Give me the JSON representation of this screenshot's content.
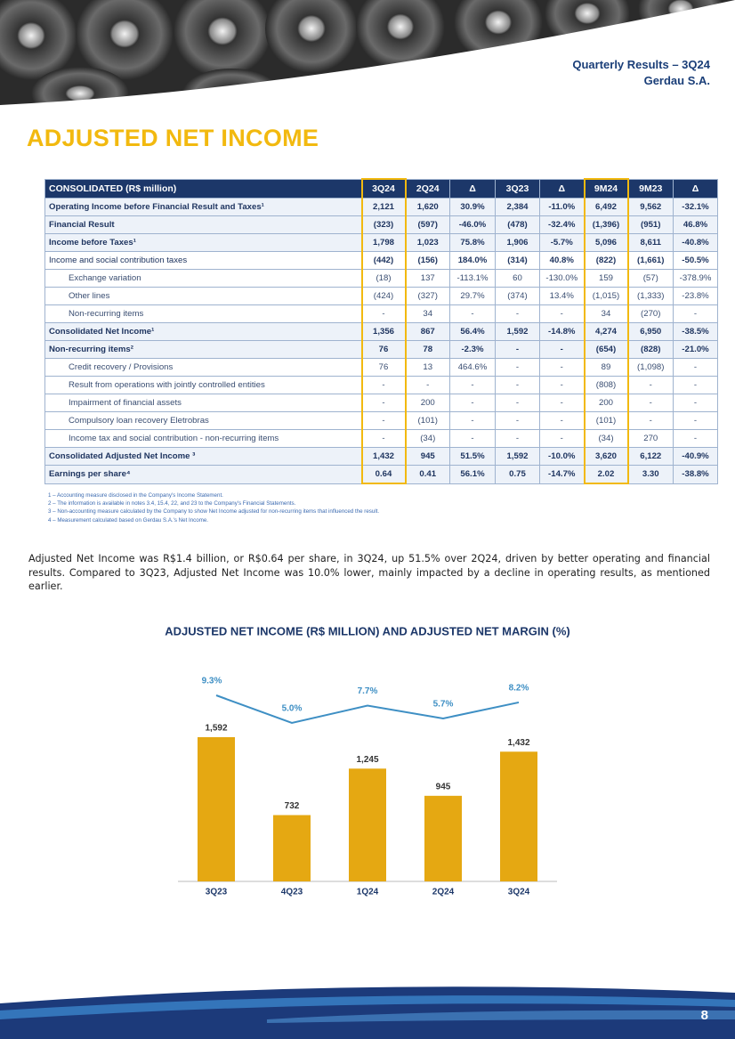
{
  "header": {
    "report": "Quarterly Results – 3Q24",
    "company": "Gerdau S.A."
  },
  "title": "ADJUSTED NET INCOME",
  "table": {
    "columns": [
      "CONSOLIDATED (R$ million)",
      "3Q24",
      "2Q24",
      "Δ",
      "3Q23",
      "Δ",
      "9M24",
      "9M23",
      "Δ"
    ],
    "rows": [
      [
        "Operating Income before Financial Result and Taxes¹",
        "2,121",
        "1,620",
        "30.9%",
        "2,384",
        "-11.0%",
        "6,492",
        "9,562",
        "-32.1%"
      ],
      [
        "Financial Result",
        "(323)",
        "(597)",
        "-46.0%",
        "(478)",
        "-32.4%",
        "(1,396)",
        "(951)",
        "46.8%"
      ],
      [
        "Income before Taxes¹",
        "1,798",
        "1,023",
        "75.8%",
        "1,906",
        "-5.7%",
        "5,096",
        "8,611",
        "-40.8%"
      ],
      [
        "Income and social contribution taxes",
        "(442)",
        "(156)",
        "184.0%",
        "(314)",
        "40.8%",
        "(822)",
        "(1,661)",
        "-50.5%"
      ],
      [
        "Exchange variation",
        "(18)",
        "137",
        "-113.1%",
        "60",
        "-130.0%",
        "159",
        "(57)",
        "-378.9%"
      ],
      [
        "Other lines",
        "(424)",
        "(327)",
        "29.7%",
        "(374)",
        "13.4%",
        "(1,015)",
        "(1,333)",
        "-23.8%"
      ],
      [
        "Non-recurring items",
        "-",
        "34",
        "-",
        "-",
        "-",
        "34",
        "(270)",
        "-"
      ],
      [
        "Consolidated Net Income¹",
        "1,356",
        "867",
        "56.4%",
        "1,592",
        "-14.8%",
        "4,274",
        "6,950",
        "-38.5%"
      ],
      [
        "Non-recurring items²",
        "76",
        "78",
        "-2.3%",
        "-",
        "-",
        "(654)",
        "(828)",
        "-21.0%"
      ],
      [
        "Credit recovery / Provisions",
        "76",
        "13",
        "464.6%",
        "-",
        "-",
        "89",
        "(1,098)",
        "-"
      ],
      [
        "Result from operations with jointly controlled entities",
        "-",
        "-",
        "-",
        "-",
        "-",
        "(808)",
        "-",
        "-"
      ],
      [
        "Impairment of financial assets",
        "-",
        "200",
        "-",
        "-",
        "-",
        "200",
        "-",
        "-"
      ],
      [
        "Compulsory loan recovery Eletrobras",
        "-",
        "(101)",
        "-",
        "-",
        "-",
        "(101)",
        "-",
        "-"
      ],
      [
        "Income tax and social contribution - non-recurring items",
        "-",
        "(34)",
        "-",
        "-",
        "-",
        "(34)",
        "270",
        "-"
      ],
      [
        "Consolidated Adjusted Net Income ³",
        "1,432",
        "945",
        "51.5%",
        "1,592",
        "-10.0%",
        "3,620",
        "6,122",
        "-40.9%"
      ],
      [
        "Earnings per share⁴",
        "0.64",
        "0.41",
        "56.1%",
        "0.75",
        "-14.7%",
        "2.02",
        "3.30",
        "-38.8%"
      ]
    ]
  },
  "footnotes": [
    "1 – Accounting measure disclosed in the Company's Income Statement.",
    "2 – The information is available in notes 3.4, 15.4, 22, and 23 to the Company's Financial Statements.",
    "3 – Non-accounting measure calculated by the Company to show Net Income adjusted for non-recurring items that influenced the result.",
    "4 – Measurement calculated based on Gerdau S.A.'s Net Income."
  ],
  "paragraph": "Adjusted Net Income was R$1.4 billion, or R$0.64 per share, in 3Q24, up 51.5% over 2Q24, driven by better operating and financial results. Compared to 3Q23, Adjusted Net Income was 10.0% lower, mainly impacted by a decline in operating results, as mentioned earlier.",
  "chart_data": {
    "type": "bar",
    "title": "ADJUSTED NET INCOME (R$ MILLION) AND ADJUSTED NET MARGIN (%)",
    "categories": [
      "3Q23",
      "4Q23",
      "1Q24",
      "2Q24",
      "3Q24"
    ],
    "series": [
      {
        "type": "bar",
        "color": "#e5a812",
        "values": [
          1592,
          732,
          1245,
          945,
          1432
        ],
        "value_labels": [
          "1,592",
          "732",
          "1,245",
          "945",
          "1,432"
        ]
      },
      {
        "type": "line",
        "axis": "y2",
        "color": "#3e8fc4",
        "values": [
          9.3,
          5.0,
          7.7,
          5.7,
          8.2
        ],
        "value_labels": [
          "9.3%",
          "5.0%",
          "7.7%",
          "5.7%",
          "8.2%"
        ]
      }
    ]
  },
  "page_number": "8"
}
